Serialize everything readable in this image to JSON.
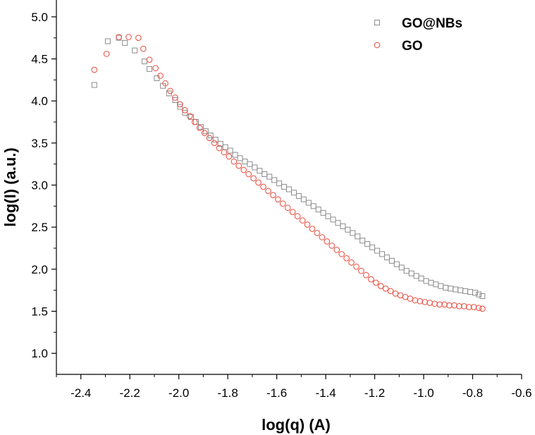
{
  "chart_data": {
    "type": "scatter",
    "title": "",
    "xlabel": "log(q) (A)",
    "ylabel": "log(I) (a.u.)",
    "xlim": [
      -2.5,
      -0.6
    ],
    "ylim": [
      0.75,
      5.2
    ],
    "xticks": [
      -2.4,
      -2.2,
      -2.0,
      -1.8,
      -1.6,
      -1.4,
      -1.2,
      -1.0,
      -0.8,
      -0.6
    ],
    "xtick_labels": [
      "-2.4",
      "-2.2",
      "-2.0",
      "-1.8",
      "-1.6",
      "-1.4",
      "-1.2",
      "-1.0",
      "-0.8",
      "-0.6"
    ],
    "yticks": [
      1.0,
      1.5,
      2.0,
      2.5,
      3.0,
      3.5,
      4.0,
      4.5,
      5.0
    ],
    "ytick_labels": [
      "1.0",
      "1.5",
      "2.0",
      "2.5",
      "3.0",
      "3.5",
      "4.0",
      "4.5",
      "5.0"
    ],
    "legend_position": "top-right",
    "series": [
      {
        "name": "GO@NBs",
        "marker": "square",
        "color": "#8c8c8c",
        "points": [
          [
            -2.345,
            4.19
          ],
          [
            -2.29,
            4.71
          ],
          [
            -2.245,
            4.75
          ],
          [
            -2.22,
            4.69
          ],
          [
            -2.18,
            4.6
          ],
          [
            -2.14,
            4.47
          ],
          [
            -2.12,
            4.38
          ],
          [
            -2.09,
            4.27
          ],
          [
            -2.065,
            4.18
          ],
          [
            -2.04,
            4.09
          ],
          [
            -2.015,
            4.01
          ],
          [
            -1.995,
            3.93
          ],
          [
            -1.975,
            3.86
          ],
          [
            -1.95,
            3.81
          ],
          [
            -1.93,
            3.75
          ],
          [
            -1.91,
            3.69
          ],
          [
            -1.89,
            3.64
          ],
          [
            -1.87,
            3.59
          ],
          [
            -1.85,
            3.54
          ],
          [
            -1.83,
            3.49
          ],
          [
            -1.81,
            3.45
          ],
          [
            -1.79,
            3.41
          ],
          [
            -1.77,
            3.36
          ],
          [
            -1.75,
            3.32
          ],
          [
            -1.73,
            3.28
          ],
          [
            -1.71,
            3.25
          ],
          [
            -1.69,
            3.21
          ],
          [
            -1.67,
            3.17
          ],
          [
            -1.65,
            3.13
          ],
          [
            -1.63,
            3.1
          ],
          [
            -1.61,
            3.06
          ],
          [
            -1.59,
            3.02
          ],
          [
            -1.57,
            2.98
          ],
          [
            -1.55,
            2.95
          ],
          [
            -1.53,
            2.91
          ],
          [
            -1.51,
            2.87
          ],
          [
            -1.49,
            2.83
          ],
          [
            -1.47,
            2.79
          ],
          [
            -1.45,
            2.75
          ],
          [
            -1.43,
            2.71
          ],
          [
            -1.41,
            2.67
          ],
          [
            -1.39,
            2.63
          ],
          [
            -1.37,
            2.59
          ],
          [
            -1.35,
            2.55
          ],
          [
            -1.33,
            2.51
          ],
          [
            -1.31,
            2.47
          ],
          [
            -1.29,
            2.43
          ],
          [
            -1.27,
            2.39
          ],
          [
            -1.25,
            2.34
          ],
          [
            -1.23,
            2.3
          ],
          [
            -1.21,
            2.26
          ],
          [
            -1.19,
            2.22
          ],
          [
            -1.17,
            2.18
          ],
          [
            -1.15,
            2.14
          ],
          [
            -1.13,
            2.1
          ],
          [
            -1.11,
            2.06
          ],
          [
            -1.09,
            2.02
          ],
          [
            -1.07,
            1.98
          ],
          [
            -1.05,
            1.95
          ],
          [
            -1.03,
            1.92
          ],
          [
            -1.01,
            1.89
          ],
          [
            -0.99,
            1.86
          ],
          [
            -0.97,
            1.84
          ],
          [
            -0.95,
            1.82
          ],
          [
            -0.93,
            1.8
          ],
          [
            -0.91,
            1.78
          ],
          [
            -0.89,
            1.77
          ],
          [
            -0.87,
            1.76
          ],
          [
            -0.85,
            1.75
          ],
          [
            -0.83,
            1.74
          ],
          [
            -0.81,
            1.73
          ],
          [
            -0.79,
            1.72
          ],
          [
            -0.775,
            1.7
          ],
          [
            -0.76,
            1.68
          ]
        ]
      },
      {
        "name": "GO",
        "marker": "circle",
        "color": "#e84a3c",
        "points": [
          [
            -2.345,
            4.37
          ],
          [
            -2.295,
            4.56
          ],
          [
            -2.245,
            4.76
          ],
          [
            -2.205,
            4.76
          ],
          [
            -2.165,
            4.75
          ],
          [
            -2.145,
            4.62
          ],
          [
            -2.12,
            4.49
          ],
          [
            -2.095,
            4.39
          ],
          [
            -2.075,
            4.3
          ],
          [
            -2.055,
            4.21
          ],
          [
            -2.035,
            4.12
          ],
          [
            -2.015,
            4.04
          ],
          [
            -1.995,
            3.96
          ],
          [
            -1.975,
            3.89
          ],
          [
            -1.955,
            3.82
          ],
          [
            -1.935,
            3.75
          ],
          [
            -1.915,
            3.68
          ],
          [
            -1.895,
            3.62
          ],
          [
            -1.875,
            3.56
          ],
          [
            -1.855,
            3.5
          ],
          [
            -1.835,
            3.44
          ],
          [
            -1.815,
            3.39
          ],
          [
            -1.795,
            3.34
          ],
          [
            -1.775,
            3.28
          ],
          [
            -1.755,
            3.23
          ],
          [
            -1.735,
            3.18
          ],
          [
            -1.715,
            3.13
          ],
          [
            -1.695,
            3.08
          ],
          [
            -1.675,
            3.03
          ],
          [
            -1.655,
            2.98
          ],
          [
            -1.635,
            2.93
          ],
          [
            -1.615,
            2.88
          ],
          [
            -1.595,
            2.83
          ],
          [
            -1.575,
            2.78
          ],
          [
            -1.555,
            2.73
          ],
          [
            -1.535,
            2.68
          ],
          [
            -1.515,
            2.63
          ],
          [
            -1.495,
            2.58
          ],
          [
            -1.475,
            2.53
          ],
          [
            -1.455,
            2.48
          ],
          [
            -1.435,
            2.43
          ],
          [
            -1.415,
            2.38
          ],
          [
            -1.395,
            2.33
          ],
          [
            -1.375,
            2.28
          ],
          [
            -1.355,
            2.23
          ],
          [
            -1.335,
            2.18
          ],
          [
            -1.315,
            2.13
          ],
          [
            -1.295,
            2.08
          ],
          [
            -1.275,
            2.03
          ],
          [
            -1.255,
            1.98
          ],
          [
            -1.235,
            1.93
          ],
          [
            -1.215,
            1.88
          ],
          [
            -1.195,
            1.84
          ],
          [
            -1.175,
            1.8
          ],
          [
            -1.155,
            1.77
          ],
          [
            -1.135,
            1.74
          ],
          [
            -1.115,
            1.71
          ],
          [
            -1.095,
            1.69
          ],
          [
            -1.075,
            1.67
          ],
          [
            -1.055,
            1.65
          ],
          [
            -1.035,
            1.63
          ],
          [
            -1.015,
            1.62
          ],
          [
            -0.995,
            1.61
          ],
          [
            -0.975,
            1.6
          ],
          [
            -0.955,
            1.59
          ],
          [
            -0.935,
            1.58
          ],
          [
            -0.915,
            1.58
          ],
          [
            -0.895,
            1.57
          ],
          [
            -0.875,
            1.57
          ],
          [
            -0.855,
            1.56
          ],
          [
            -0.835,
            1.56
          ],
          [
            -0.815,
            1.55
          ],
          [
            -0.795,
            1.55
          ],
          [
            -0.775,
            1.54
          ],
          [
            -0.76,
            1.53
          ]
        ]
      }
    ]
  }
}
